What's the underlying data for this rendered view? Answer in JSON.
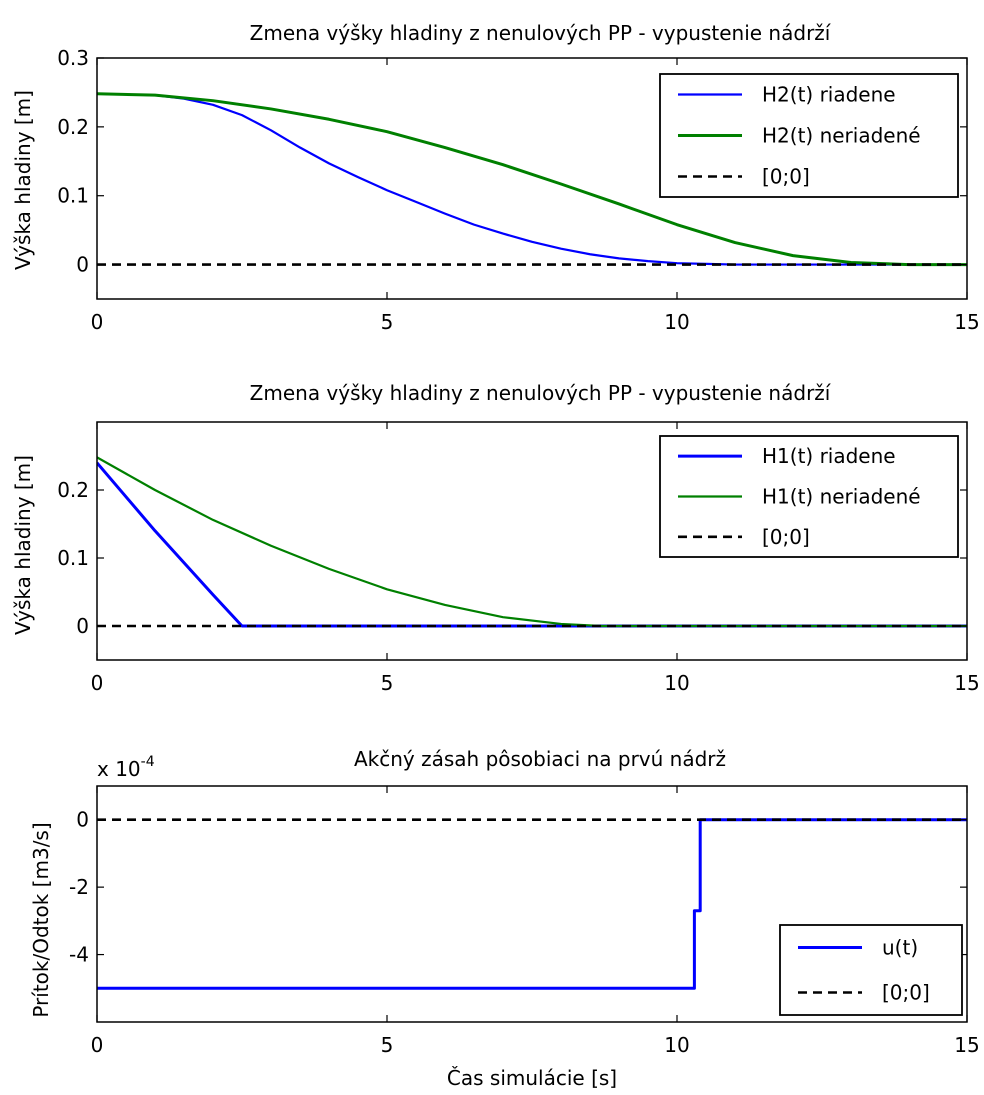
{
  "xlabel": "Čas simulácie [s]",
  "chart_data": [
    {
      "type": "line",
      "title": "Zmena výšky hladiny z nenulových PP - vypustenie nádrží",
      "xlabel": "",
      "ylabel": "Výška hladiny [m]",
      "xlim": [
        0,
        15
      ],
      "ylim": [
        -0.05,
        0.3
      ],
      "xticks": [
        0,
        5,
        10,
        15
      ],
      "yticks": [
        0,
        0.1,
        0.2,
        0.3
      ],
      "ytick_labels": [
        "0",
        "0.1",
        "0.2",
        "0.3"
      ],
      "exponent_label": "",
      "legend_position": "top-right",
      "series": [
        {
          "name": "H2(t) riadene",
          "color": "#0000ff",
          "dash": "solid",
          "width": 2.2,
          "x": [
            0,
            1,
            1.5,
            2,
            2.5,
            3,
            3.5,
            4,
            4.5,
            5,
            5.5,
            6,
            6.5,
            7,
            7.5,
            8,
            8.5,
            9,
            9.5,
            10,
            10.5,
            11,
            15
          ],
          "y": [
            0.248,
            0.246,
            0.241,
            0.232,
            0.217,
            0.195,
            0.17,
            0.147,
            0.127,
            0.108,
            0.091,
            0.074,
            0.058,
            0.045,
            0.033,
            0.023,
            0.015,
            0.009,
            0.005,
            0.002,
            0.001,
            0,
            0
          ]
        },
        {
          "name": "H2(t) neriadené",
          "color": "#008000",
          "dash": "solid",
          "width": 3,
          "x": [
            0,
            1,
            2,
            3,
            4,
            5,
            6,
            7,
            8,
            9,
            10,
            11,
            12,
            13,
            14,
            15
          ],
          "y": [
            0.248,
            0.246,
            0.238,
            0.226,
            0.211,
            0.193,
            0.17,
            0.145,
            0.117,
            0.088,
            0.058,
            0.032,
            0.013,
            0.003,
            0,
            0
          ]
        },
        {
          "name": "[0;0]",
          "color": "#000000",
          "dash": "dashed",
          "width": 2.6,
          "x": [
            0,
            15
          ],
          "y": [
            0,
            0
          ]
        }
      ]
    },
    {
      "type": "line",
      "title": "Zmena výšky hladiny z nenulových PP - vypustenie nádrží",
      "xlabel": "",
      "ylabel": "Výška hladiny [m]",
      "xlim": [
        0,
        15
      ],
      "ylim": [
        -0.05,
        0.3
      ],
      "xticks": [
        0,
        5,
        10,
        15
      ],
      "yticks": [
        0,
        0.1,
        0.2
      ],
      "ytick_labels": [
        "0",
        "0.1",
        "0.2"
      ],
      "exponent_label": "",
      "legend_position": "top-right",
      "series": [
        {
          "name": "H1(t) riadene",
          "color": "#0000ff",
          "dash": "solid",
          "width": 3,
          "x": [
            0,
            0.5,
            1,
            1.5,
            2,
            2.5,
            15
          ],
          "y": [
            0.24,
            0.19,
            0.14,
            0.093,
            0.046,
            0,
            0
          ]
        },
        {
          "name": "H1(t) neriadené",
          "color": "#008000",
          "dash": "solid",
          "width": 2.2,
          "x": [
            0,
            1,
            2,
            3,
            4,
            5,
            6,
            7,
            8,
            8.7,
            15
          ],
          "y": [
            0.248,
            0.2,
            0.156,
            0.118,
            0.084,
            0.054,
            0.031,
            0.013,
            0.003,
            0,
            0
          ]
        },
        {
          "name": "[0;0]",
          "color": "#000000",
          "dash": "dashed",
          "width": 2.6,
          "x": [
            0,
            15
          ],
          "y": [
            0,
            0
          ]
        }
      ]
    },
    {
      "type": "line",
      "title": "Akčný zásah pôsobiaci na prvú nádrž",
      "xlabel": "Čas simulácie [s]",
      "ylabel": "Prítok/Odtok [m3/s]",
      "xlim": [
        0,
        15
      ],
      "ylim": [
        -6,
        1
      ],
      "xticks": [
        0,
        5,
        10,
        15
      ],
      "yticks": [
        -4,
        -2,
        0
      ],
      "ytick_labels": [
        "-4",
        "-2",
        "0"
      ],
      "exponent_label": "x 10",
      "exponent_sup": "-4",
      "legend_position": "bottom-right",
      "series": [
        {
          "name": "u(t)",
          "color": "#0000ff",
          "dash": "solid",
          "width": 3,
          "x": [
            0,
            10.3,
            10.3,
            10.4,
            10.4,
            10.5,
            15
          ],
          "y": [
            -5,
            -5,
            -2.7,
            -2.7,
            0,
            0,
            0
          ]
        },
        {
          "name": "[0;0]",
          "color": "#000000",
          "dash": "dashed",
          "width": 2.6,
          "x": [
            0,
            15
          ],
          "y": [
            0,
            0
          ]
        }
      ]
    }
  ]
}
